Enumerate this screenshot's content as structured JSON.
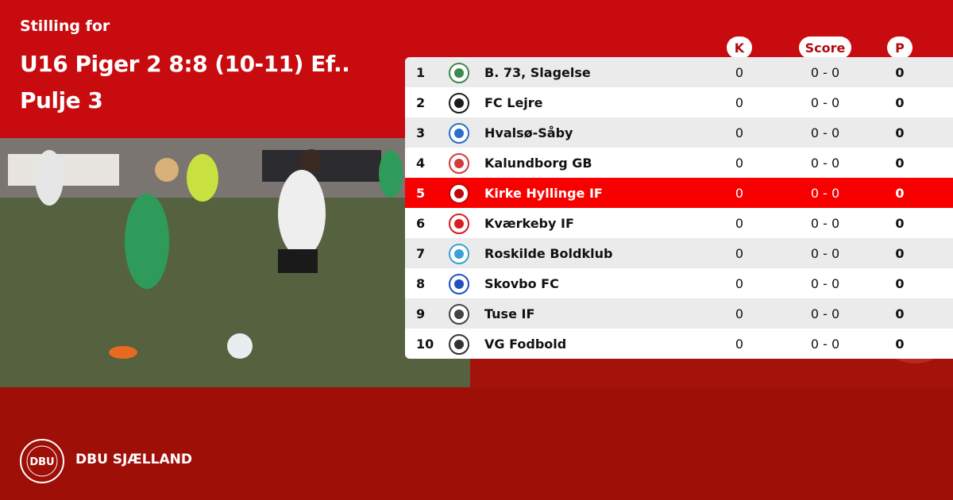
{
  "header": {
    "subtitle": "Stilling for",
    "title_line1": "U16 Piger 2 8:8 (10-11) Ef..",
    "title_line2": "Pulje 3"
  },
  "columns": {
    "k": "K",
    "score": "Score",
    "p": "P"
  },
  "colors": {
    "top_red": "#c80b0e",
    "highlight": "#f90000",
    "footer_red": "#9e0f07"
  },
  "rows": [
    {
      "rank": "1",
      "team": "B. 73, Slagelse",
      "k": "0",
      "score": "0 - 0",
      "p": "0",
      "crest": "#3d8a4e"
    },
    {
      "rank": "2",
      "team": "FC Lejre",
      "k": "0",
      "score": "0 - 0",
      "p": "0",
      "crest": "#1c1c1c"
    },
    {
      "rank": "3",
      "team": "Hvalsø-Såby",
      "k": "0",
      "score": "0 - 0",
      "p": "0",
      "crest": "#2a6fc9"
    },
    {
      "rank": "4",
      "team": "Kalundborg GB",
      "k": "0",
      "score": "0 - 0",
      "p": "0",
      "crest": "#d43a3a"
    },
    {
      "rank": "5",
      "team": "Kirke Hyllinge IF",
      "k": "0",
      "score": "0 - 0",
      "p": "0",
      "crest": "#c0080a",
      "highlight": true
    },
    {
      "rank": "6",
      "team": "Kværkeby IF",
      "k": "0",
      "score": "0 - 0",
      "p": "0",
      "crest": "#d81e1e"
    },
    {
      "rank": "7",
      "team": "Roskilde Boldklub",
      "k": "0",
      "score": "0 - 0",
      "p": "0",
      "crest": "#3aa0d8"
    },
    {
      "rank": "8",
      "team": "Skovbo FC",
      "k": "0",
      "score": "0 - 0",
      "p": "0",
      "crest": "#2050c0"
    },
    {
      "rank": "9",
      "team": "Tuse IF",
      "k": "0",
      "score": "0 - 0",
      "p": "0",
      "crest": "#444444"
    },
    {
      "rank": "10",
      "team": "VG Fodbold",
      "k": "0",
      "score": "0 - 0",
      "p": "0",
      "crest": "#333333"
    }
  ],
  "footer": {
    "brand": "DBU SJÆLLAND",
    "logo_text": "DANSK BOLDSPIL-UNION 1889 DBU"
  }
}
